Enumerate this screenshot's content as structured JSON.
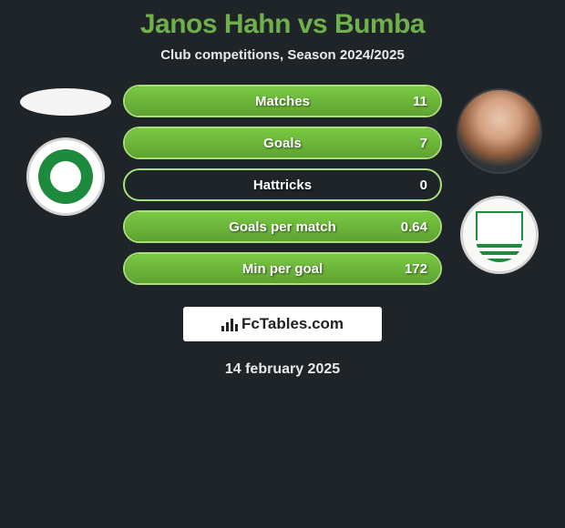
{
  "title": "Janos Hahn vs Bumba",
  "subtitle": "Club competitions, Season 2024/2025",
  "date": "14 february 2025",
  "brand": "FcTables.com",
  "colors": {
    "background": "#1e2428",
    "accent_title": "#6fb04a",
    "bar_border": "#a8e07a",
    "bar_fill_top": "#7ac943",
    "bar_fill_bottom": "#5fa332",
    "text": "#e8e8e8",
    "white": "#ffffff",
    "club_green": "#1e8a3e"
  },
  "stats": [
    {
      "label": "Matches",
      "value": "11",
      "fill_pct": 100
    },
    {
      "label": "Goals",
      "value": "7",
      "fill_pct": 100
    },
    {
      "label": "Hattricks",
      "value": "0",
      "fill_pct": 0
    },
    {
      "label": "Goals per match",
      "value": "0.64",
      "fill_pct": 100
    },
    {
      "label": "Min per goal",
      "value": "172",
      "fill_pct": 100
    }
  ],
  "left": {
    "player_photo": "placeholder-ellipse",
    "club": "green-circle-badge"
  },
  "right": {
    "player_photo": "portrait-circle",
    "club": "green-striped-badge"
  }
}
